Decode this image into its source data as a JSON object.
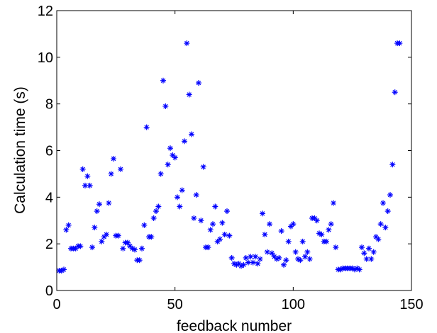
{
  "chart_data": {
    "type": "scatter",
    "title": "",
    "xlabel": "feedback number",
    "ylabel": "Calculation time (s)",
    "xlim": [
      0,
      150
    ],
    "ylim": [
      0,
      12
    ],
    "x_ticks": [
      0,
      50,
      100,
      150
    ],
    "y_ticks": [
      0,
      2,
      4,
      6,
      8,
      10,
      12
    ],
    "grid": false,
    "marker": "asterisk",
    "marker_color": "#0000ff",
    "series": [
      {
        "x": [
          1,
          2,
          3,
          4,
          5,
          6,
          7,
          8,
          9,
          10,
          11,
          12,
          13,
          14,
          15,
          16,
          17,
          18,
          19,
          20,
          21,
          22,
          23,
          24,
          25,
          26,
          27,
          28,
          29,
          30,
          31,
          32,
          33,
          34,
          35,
          36,
          37,
          38,
          39,
          40,
          41,
          42,
          43,
          44,
          45,
          46,
          47,
          48,
          49,
          50,
          51,
          52,
          53,
          54,
          55,
          56,
          57,
          58,
          59,
          60,
          61,
          62,
          63,
          64,
          65,
          66,
          67,
          68,
          69,
          70,
          71,
          72,
          73,
          74,
          75,
          76,
          77,
          78,
          79,
          80,
          81,
          82,
          83,
          84,
          85,
          86,
          87,
          88,
          89,
          90,
          91,
          92,
          93,
          94,
          95,
          96,
          97,
          98,
          99,
          100,
          101,
          102,
          103,
          104,
          105,
          106,
          107,
          108,
          109,
          110,
          111,
          112,
          113,
          114,
          115,
          116,
          117,
          118,
          119,
          120,
          121,
          122,
          123,
          124,
          125,
          126,
          127,
          128,
          129,
          130,
          131,
          132,
          133,
          134,
          135,
          136,
          137,
          138,
          139,
          140,
          141,
          142,
          143,
          144,
          145
        ],
        "y": [
          0.85,
          0.85,
          0.9,
          2.6,
          2.8,
          1.8,
          1.8,
          1.8,
          1.9,
          1.9,
          5.2,
          4.5,
          4.9,
          4.5,
          1.85,
          2.7,
          3.4,
          3.7,
          2.1,
          2.3,
          2.4,
          3.75,
          5.0,
          5.65,
          2.35,
          2.35,
          5.2,
          1.8,
          2.05,
          2.05,
          1.9,
          1.8,
          1.75,
          1.3,
          1.3,
          1.8,
          2.8,
          7.0,
          2.3,
          2.3,
          3.1,
          3.4,
          3.6,
          5.0,
          9.0,
          7.9,
          5.4,
          6.1,
          5.8,
          5.7,
          4.0,
          3.6,
          4.3,
          6.4,
          10.6,
          8.4,
          6.7,
          3.1,
          4.1,
          8.9,
          3.0,
          5.3,
          1.85,
          1.85,
          2.6,
          2.85,
          3.6,
          2.1,
          2.2,
          2.9,
          2.4,
          3.4,
          2.35,
          1.4,
          1.15,
          1.1,
          1.15,
          1.05,
          1.1,
          1.4,
          1.2,
          1.45,
          1.2,
          1.45,
          1.15,
          1.35,
          3.3,
          2.4,
          1.65,
          2.85,
          1.6,
          1.45,
          1.35,
          1.4,
          2.55,
          1.1,
          1.3,
          2.1,
          2.75,
          2.85,
          1.65,
          1.35,
          1.3,
          2.1,
          1.45,
          1.65,
          1.35,
          3.1,
          3.1,
          3.0,
          2.45,
          2.4,
          2.1,
          2.1,
          2.6,
          2.85,
          3.75,
          1.85,
          0.9,
          0.9,
          0.95,
          0.95,
          0.95,
          0.95,
          0.95,
          0.9,
          0.95,
          0.9,
          1.85,
          1.6,
          1.35,
          1.8,
          1.35,
          1.65,
          2.3,
          2.2,
          2.85,
          3.75,
          2.7,
          3.4,
          4.1,
          5.4,
          8.5,
          10.6,
          10.6
        ]
      }
    ]
  }
}
